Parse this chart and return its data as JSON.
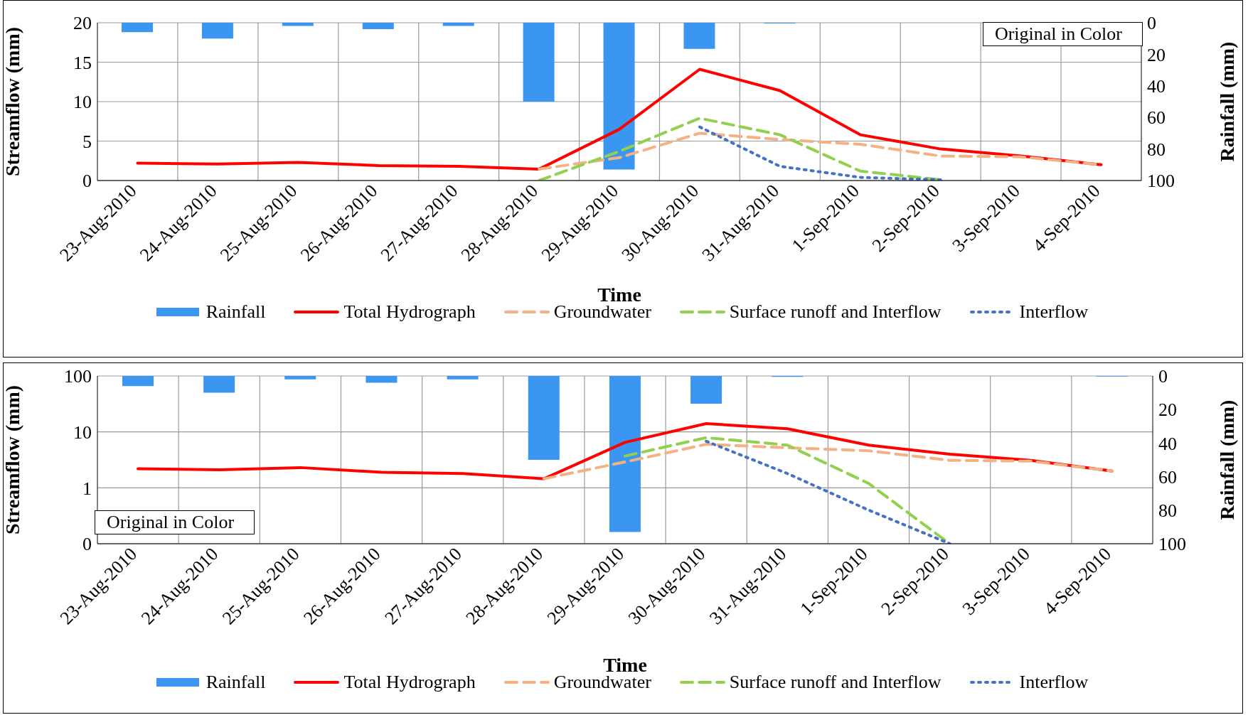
{
  "chart_data": [
    {
      "type": "line",
      "xlabel": "Time",
      "ylabel": "Streamflow  (mm)",
      "y2label": "Rainfall (mm)",
      "categories": [
        "23-Aug-2010",
        "24-Aug-2010",
        "25-Aug-2010",
        "26-Aug-2010",
        "27-Aug-2010",
        "28-Aug-2010",
        "29-Aug-2010",
        "30-Aug-2010",
        "31-Aug-2010",
        "1-Sep-2010",
        "2-Sep-2010",
        "3-Sep-2010",
        "4-Sep-2010"
      ],
      "series": [
        {
          "name": "Rainfall",
          "type": "bar",
          "axis": "y2",
          "color": "#3a96f0",
          "values": [
            6,
            10,
            2,
            4,
            2,
            50,
            93,
            16.5,
            0.5,
            0,
            0,
            0,
            0
          ]
        },
        {
          "name": "Total Hydrograph",
          "line_style": "solid",
          "color": "#ff0000",
          "values": [
            2.2,
            2.1,
            2.3,
            1.9,
            1.8,
            1.45,
            6.5,
            14.1,
            11.4,
            5.8,
            4.0,
            3.1,
            2.0
          ]
        },
        {
          "name": "Groundwater",
          "line_style": "dashed",
          "color": "#f4b183",
          "values": [
            null,
            null,
            null,
            null,
            null,
            1.45,
            2.9,
            6.0,
            5.2,
            4.6,
            3.1,
            3.0,
            2.0
          ]
        },
        {
          "name": "Surface runoff and Interflow",
          "line_style": "dashed",
          "color": "#92d050",
          "values": [
            null,
            null,
            null,
            null,
            null,
            0,
            3.7,
            7.9,
            5.8,
            1.2,
            0.1,
            null,
            null
          ]
        },
        {
          "name": "Interflow",
          "line_style": "dotted",
          "color": "#4472c4",
          "values": [
            null,
            null,
            null,
            null,
            null,
            null,
            null,
            6.8,
            1.8,
            0.4,
            0.1,
            null,
            null
          ]
        }
      ],
      "ylim": [
        0,
        20
      ],
      "yticks": [
        0,
        5,
        10,
        15,
        20
      ],
      "y2lim": [
        100,
        0
      ],
      "y2ticks": [
        0,
        20,
        40,
        60,
        80,
        100
      ],
      "grid": true,
      "legend": "bottom",
      "marker": "none",
      "annotations": [
        "Original in Color"
      ]
    },
    {
      "type": "line",
      "xlabel": "Time",
      "ylabel": "Streamflow  (mm)",
      "y2label": "Rainfall (mm)",
      "categories": [
        "23-Aug-2010",
        "24-Aug-2010",
        "25-Aug-2010",
        "26-Aug-2010",
        "27-Aug-2010",
        "28-Aug-2010",
        "29-Aug-2010",
        "30-Aug-2010",
        "31-Aug-2010",
        "1-Sep-2010",
        "2-Sep-2010",
        "3-Sep-2010",
        "4-Sep-2010"
      ],
      "series": [
        {
          "name": "Rainfall",
          "type": "bar",
          "axis": "y2",
          "color": "#3a96f0",
          "values": [
            6,
            10,
            2,
            4,
            2,
            50,
            93,
            16.5,
            0.5,
            0,
            0,
            0,
            0.3
          ]
        },
        {
          "name": "Total Hydrograph",
          "line_style": "solid",
          "color": "#ff0000",
          "values": [
            2.2,
            2.1,
            2.3,
            1.9,
            1.8,
            1.45,
            6.5,
            14.1,
            11.4,
            5.8,
            4.0,
            3.1,
            2.0
          ]
        },
        {
          "name": "Groundwater",
          "line_style": "dashed",
          "color": "#f4b183",
          "values": [
            null,
            null,
            null,
            null,
            null,
            1.45,
            2.9,
            6.0,
            5.2,
            4.6,
            3.1,
            3.0,
            2.0
          ]
        },
        {
          "name": "Surface runoff and Interflow",
          "line_style": "dashed",
          "color": "#92d050",
          "values": [
            null,
            null,
            null,
            null,
            null,
            null,
            3.7,
            7.9,
            5.8,
            1.2,
            0.1,
            null,
            null
          ]
        },
        {
          "name": "Interflow",
          "line_style": "dotted",
          "color": "#4472c4",
          "values": [
            null,
            null,
            null,
            null,
            null,
            null,
            null,
            6.8,
            1.8,
            0.4,
            0.1,
            null,
            null
          ]
        }
      ],
      "log": "y",
      "ylim": [
        0.1,
        100
      ],
      "yticks": [
        {
          "value": 0.1,
          "label": "0"
        },
        1,
        10,
        100
      ],
      "y2lim": [
        100,
        0
      ],
      "y2ticks": [
        0,
        20,
        40,
        60,
        80,
        100
      ],
      "grid": true,
      "legend": "bottom",
      "marker": "none",
      "annotations": [
        "Original in Color"
      ]
    }
  ]
}
